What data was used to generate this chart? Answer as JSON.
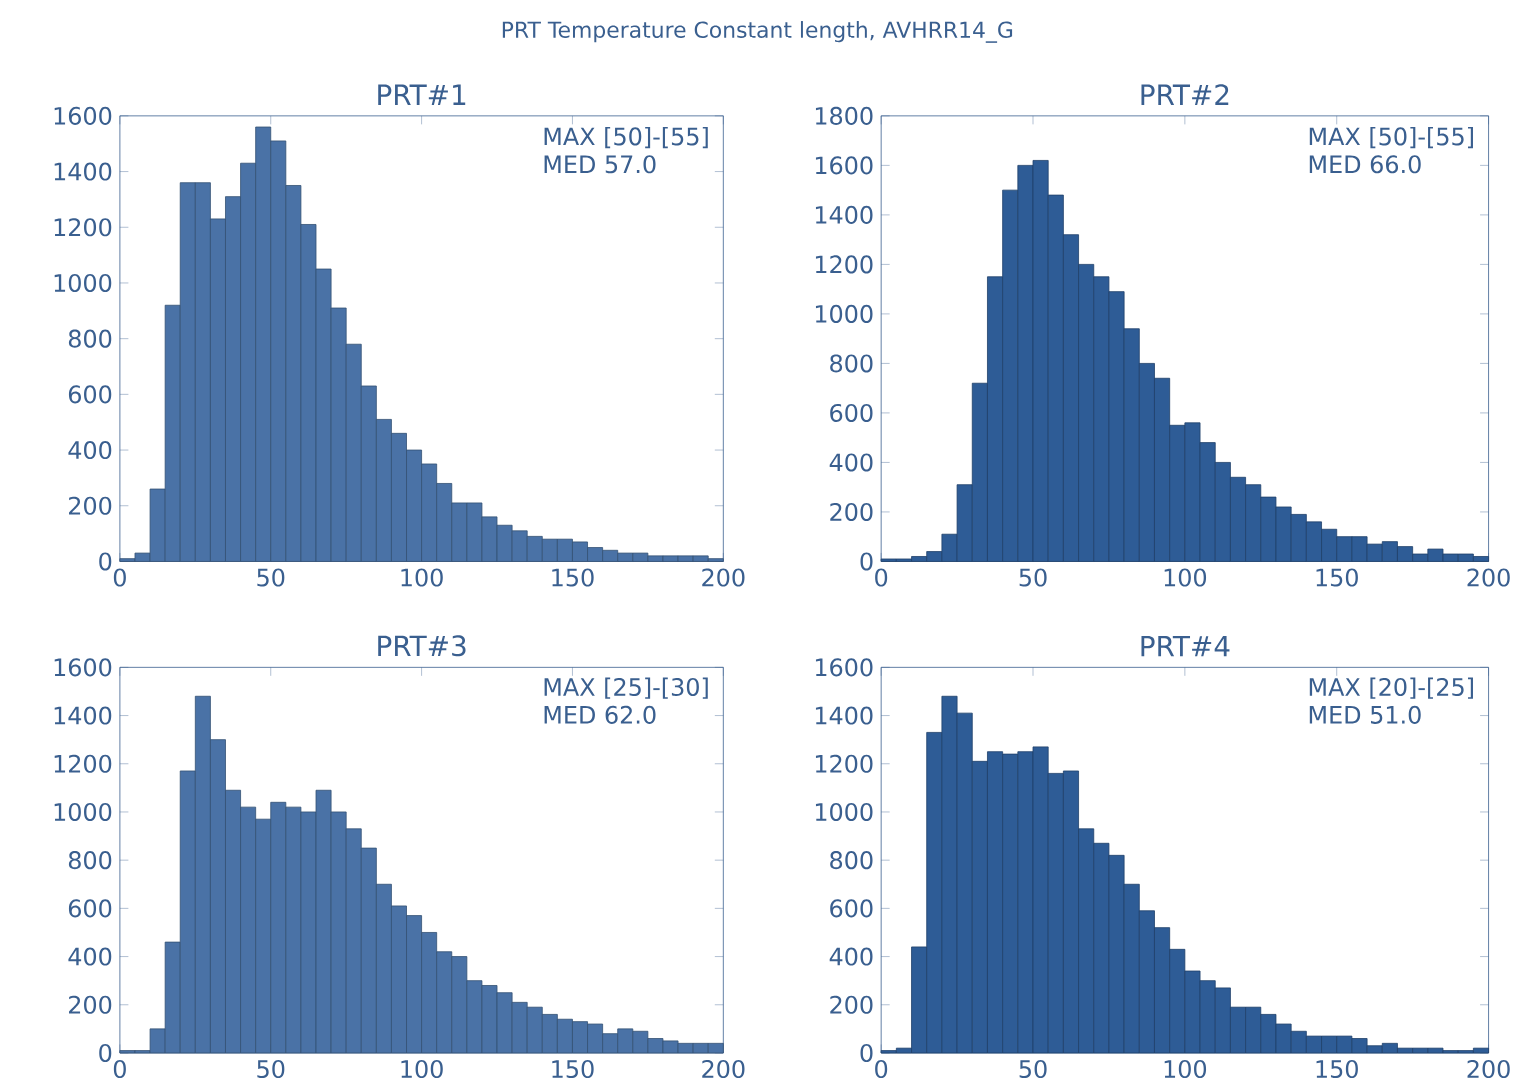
{
  "chart_data": [
    {
      "type": "other",
      "title": "PRT Temperature Constant length, AVHRR14_G"
    },
    {
      "type": "histogram",
      "title": "PRT#1",
      "color": "#4a72a6",
      "xlim": [
        0,
        200
      ],
      "ylim": [
        0,
        1600
      ],
      "xticks": [
        0,
        50,
        100,
        150,
        200
      ],
      "yticks": [
        0,
        200,
        400,
        600,
        800,
        1000,
        1200,
        1400,
        1600
      ],
      "annotations": [
        "MAX [50]-[55]",
        "MED 57.0"
      ],
      "bins": [
        0,
        5,
        10,
        15,
        20,
        25,
        30,
        35,
        40,
        45,
        50,
        55,
        60,
        65,
        70,
        75,
        80,
        85,
        90,
        95,
        100,
        105,
        110,
        115,
        120,
        125,
        130,
        135,
        140,
        145,
        150,
        155,
        160,
        165,
        170,
        175,
        180,
        185,
        190,
        195,
        200
      ],
      "values": [
        10,
        30,
        260,
        920,
        1360,
        1360,
        1230,
        1310,
        1430,
        1560,
        1510,
        1350,
        1210,
        1050,
        910,
        780,
        630,
        510,
        460,
        400,
        350,
        280,
        210,
        210,
        160,
        130,
        110,
        90,
        80,
        80,
        70,
        50,
        40,
        30,
        30,
        20,
        20,
        20,
        20,
        10
      ]
    },
    {
      "type": "histogram",
      "title": "PRT#2",
      "color": "#2e5c96",
      "xlim": [
        0,
        200
      ],
      "ylim": [
        0,
        1800
      ],
      "xticks": [
        0,
        50,
        100,
        150,
        200
      ],
      "yticks": [
        0,
        200,
        400,
        600,
        800,
        1000,
        1200,
        1400,
        1600,
        1800
      ],
      "annotations": [
        "MAX [50]-[55]",
        "MED 66.0"
      ],
      "bins": [
        0,
        5,
        10,
        15,
        20,
        25,
        30,
        35,
        40,
        45,
        50,
        55,
        60,
        65,
        70,
        75,
        80,
        85,
        90,
        95,
        100,
        105,
        110,
        115,
        120,
        125,
        130,
        135,
        140,
        145,
        150,
        155,
        160,
        165,
        170,
        175,
        180,
        185,
        190,
        195,
        200
      ],
      "values": [
        10,
        10,
        20,
        40,
        110,
        310,
        720,
        1150,
        1500,
        1600,
        1620,
        1480,
        1320,
        1200,
        1150,
        1090,
        940,
        800,
        740,
        550,
        560,
        480,
        400,
        340,
        310,
        260,
        220,
        190,
        160,
        130,
        100,
        100,
        70,
        80,
        60,
        30,
        50,
        30,
        30,
        20
      ]
    },
    {
      "type": "histogram",
      "title": "PRT#3",
      "color": "#4a72a6",
      "xlim": [
        0,
        200
      ],
      "ylim": [
        0,
        1600
      ],
      "xticks": [
        0,
        50,
        100,
        150,
        200
      ],
      "yticks": [
        0,
        200,
        400,
        600,
        800,
        1000,
        1200,
        1400,
        1600
      ],
      "annotations": [
        "MAX [25]-[30]",
        "MED 62.0"
      ],
      "bins": [
        0,
        5,
        10,
        15,
        20,
        25,
        30,
        35,
        40,
        45,
        50,
        55,
        60,
        65,
        70,
        75,
        80,
        85,
        90,
        95,
        100,
        105,
        110,
        115,
        120,
        125,
        130,
        135,
        140,
        145,
        150,
        155,
        160,
        165,
        170,
        175,
        180,
        185,
        190,
        195,
        200
      ],
      "values": [
        10,
        10,
        100,
        460,
        1170,
        1480,
        1300,
        1090,
        1020,
        970,
        1040,
        1020,
        1000,
        1090,
        1000,
        930,
        850,
        700,
        610,
        570,
        500,
        420,
        400,
        300,
        280,
        250,
        210,
        190,
        160,
        140,
        130,
        120,
        80,
        100,
        90,
        60,
        50,
        40,
        40,
        40
      ]
    },
    {
      "type": "histogram",
      "title": "PRT#4",
      "color": "#2e5c96",
      "xlim": [
        0,
        200
      ],
      "ylim": [
        0,
        1600
      ],
      "xticks": [
        0,
        50,
        100,
        150,
        200
      ],
      "yticks": [
        0,
        200,
        400,
        600,
        800,
        1000,
        1200,
        1400,
        1600
      ],
      "annotations": [
        "MAX [20]-[25]",
        "MED 51.0"
      ],
      "bins": [
        0,
        5,
        10,
        15,
        20,
        25,
        30,
        35,
        40,
        45,
        50,
        55,
        60,
        65,
        70,
        75,
        80,
        85,
        90,
        95,
        100,
        105,
        110,
        115,
        120,
        125,
        130,
        135,
        140,
        145,
        150,
        155,
        160,
        165,
        170,
        175,
        180,
        185,
        190,
        195,
        200
      ],
      "values": [
        10,
        20,
        440,
        1330,
        1480,
        1410,
        1210,
        1250,
        1240,
        1250,
        1270,
        1160,
        1170,
        930,
        870,
        820,
        700,
        590,
        520,
        430,
        340,
        300,
        270,
        190,
        190,
        160,
        120,
        90,
        70,
        70,
        70,
        60,
        30,
        40,
        20,
        20,
        20,
        10,
        10,
        20
      ]
    }
  ]
}
